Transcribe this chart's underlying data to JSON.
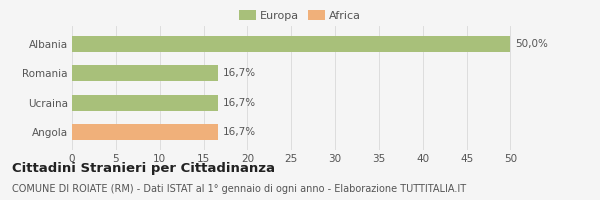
{
  "categories": [
    "Albania",
    "Romania",
    "Ucraina",
    "Angola"
  ],
  "values": [
    50.0,
    16.7,
    16.7,
    16.7
  ],
  "bar_colors": [
    "#a8c07a",
    "#a8c07a",
    "#a8c07a",
    "#f0b07a"
  ],
  "labels": [
    "50,0%",
    "16,7%",
    "16,7%",
    "16,7%"
  ],
  "xlim": [
    0,
    52
  ],
  "xticks": [
    0,
    5,
    10,
    15,
    20,
    25,
    30,
    35,
    40,
    45,
    50
  ],
  "legend": [
    {
      "label": "Europa",
      "color": "#a8c07a"
    },
    {
      "label": "Africa",
      "color": "#f0b07a"
    }
  ],
  "title": "Cittadini Stranieri per Cittadinanza",
  "subtitle": "COMUNE DI ROIATE (RM) - Dati ISTAT al 1° gennaio di ogni anno - Elaborazione TUTTITALIA.IT",
  "background_color": "#f5f5f5",
  "grid_color": "#dddddd",
  "bar_height": 0.55,
  "label_fontsize": 7.5,
  "title_fontsize": 9.5,
  "subtitle_fontsize": 7,
  "tick_label_fontsize": 7.5,
  "legend_fontsize": 8,
  "text_color": "#555555",
  "title_color": "#222222"
}
